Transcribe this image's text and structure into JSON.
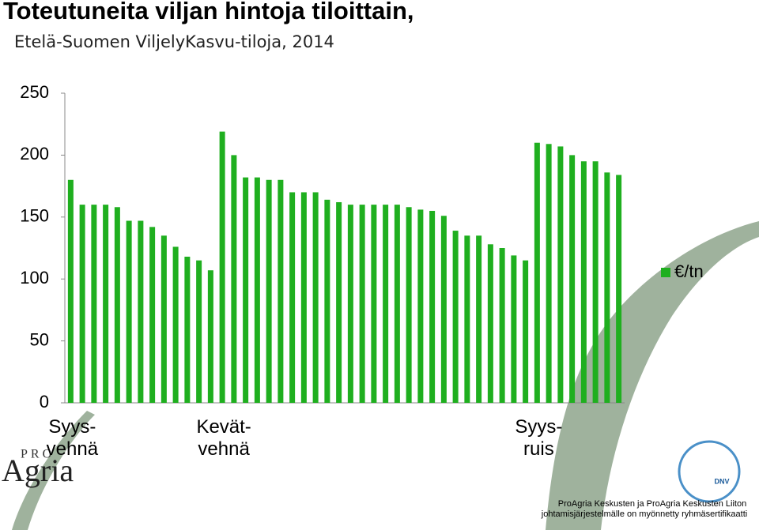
{
  "chart_data": {
    "type": "bar",
    "title": "Toteutuneita viljan hintoja tiloittain,",
    "subtitle": "Etelä-Suomen ViljelyKasvu-tiloja, 2014",
    "categories": [
      "Syys-\nvehnä",
      null,
      null,
      null,
      null,
      null,
      null,
      null,
      null,
      null,
      null,
      null,
      null,
      "Kevät-\nvehnä",
      null,
      null,
      null,
      null,
      null,
      null,
      null,
      null,
      null,
      null,
      null,
      null,
      null,
      null,
      null,
      null,
      null,
      null,
      null,
      null,
      null,
      null,
      null,
      null,
      null,
      null,
      "Syys-\nruis",
      null,
      null,
      null,
      null,
      null,
      null,
      null
    ],
    "series": [
      {
        "name": "€/tn",
        "color": "#1faf1f",
        "values": [
          180,
          160,
          160,
          160,
          158,
          147,
          147,
          142,
          135,
          126,
          118,
          115,
          107,
          219,
          200,
          182,
          182,
          180,
          180,
          170,
          170,
          170,
          164,
          162,
          160,
          160,
          160,
          160,
          160,
          158,
          156,
          155,
          151,
          139,
          135,
          135,
          128,
          125,
          119,
          115,
          210,
          209,
          207,
          200,
          195,
          195,
          186,
          184
        ]
      }
    ],
    "ylim": [
      0,
      250
    ],
    "yticks": [
      0,
      50,
      100,
      150,
      200,
      250
    ],
    "grid": false,
    "legend": "right"
  },
  "logo": {
    "top": "PRO",
    "bottom": "Agria"
  },
  "certificate": {
    "badge": "DNV",
    "lines": [
      "ProAgria Keskusten ja ProAgria Keskusten Liiton",
      "johtamisjärjestelmälle on myönnetty ryhmäsertifikaatti"
    ]
  }
}
